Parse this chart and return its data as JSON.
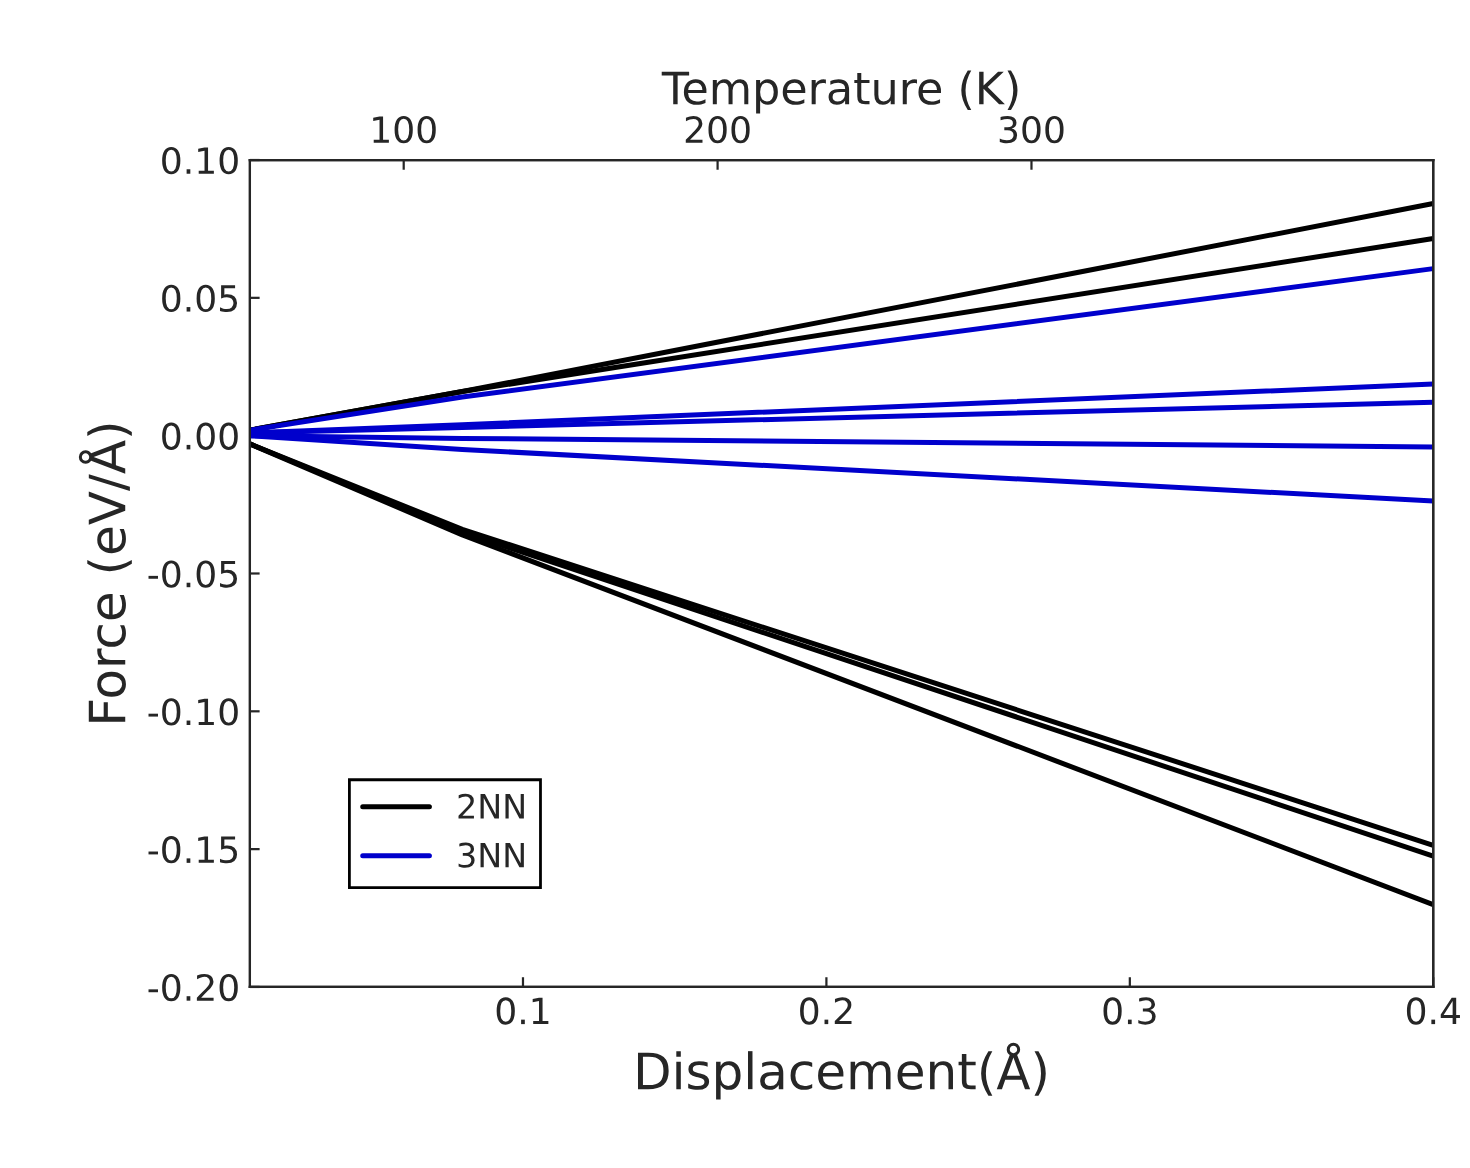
{
  "chart_data": {
    "type": "line",
    "xlabel": "Displacement(Å)",
    "ylabel": "Force (eV/Å)",
    "x2label": "Temperature (K)",
    "x": [
      0.01,
      0.08,
      0.4
    ],
    "series": [
      {
        "name": "2NN",
        "color": "#000000",
        "values": [
          0.002,
          0.016,
          0.0842
        ]
      },
      {
        "color": "#000000",
        "values": [
          0.002,
          0.016,
          0.0715
        ]
      },
      {
        "color": "#000000",
        "values": [
          -0.003,
          -0.034,
          -0.1486
        ]
      },
      {
        "color": "#000000",
        "values": [
          -0.003,
          -0.035,
          -0.1525
        ]
      },
      {
        "color": "#000000",
        "values": [
          -0.003,
          -0.036,
          -0.1701
        ]
      },
      {
        "name": "3NN",
        "color": "#0000cc",
        "values": [
          0.002,
          0.014,
          0.0606
        ]
      },
      {
        "color": "#0000cc",
        "values": [
          0.001,
          0.004,
          0.0187
        ]
      },
      {
        "color": "#0000cc",
        "values": [
          0.001,
          0.003,
          0.0121
        ]
      },
      {
        "color": "#0000cc",
        "values": [
          0.0,
          -0.001,
          -0.0041
        ]
      },
      {
        "color": "#0000cc",
        "values": [
          0.0,
          -0.005,
          -0.0237
        ]
      }
    ],
    "xlim": [
      0.01,
      0.4
    ],
    "xticks": [
      0.1,
      0.2,
      0.3,
      0.4
    ],
    "x2lim": [
      51,
      428
    ],
    "x2ticks": [
      100,
      200,
      300
    ],
    "ylim": [
      -0.2,
      0.1
    ],
    "yticks": [
      {
        "value": 0.1,
        "label": "0.10"
      },
      {
        "value": 0.05,
        "label": "0.05"
      },
      {
        "value": 0.0,
        "label": "0.00"
      },
      {
        "value": -0.05,
        "label": "-0.05"
      },
      {
        "value": -0.1,
        "label": "-0.10"
      },
      {
        "value": -0.15,
        "label": "-0.15"
      },
      {
        "value": -0.2,
        "label": "-0.20"
      }
    ],
    "grid": false,
    "legend": "lower left",
    "marker": "none",
    "line_style": "solid"
  }
}
